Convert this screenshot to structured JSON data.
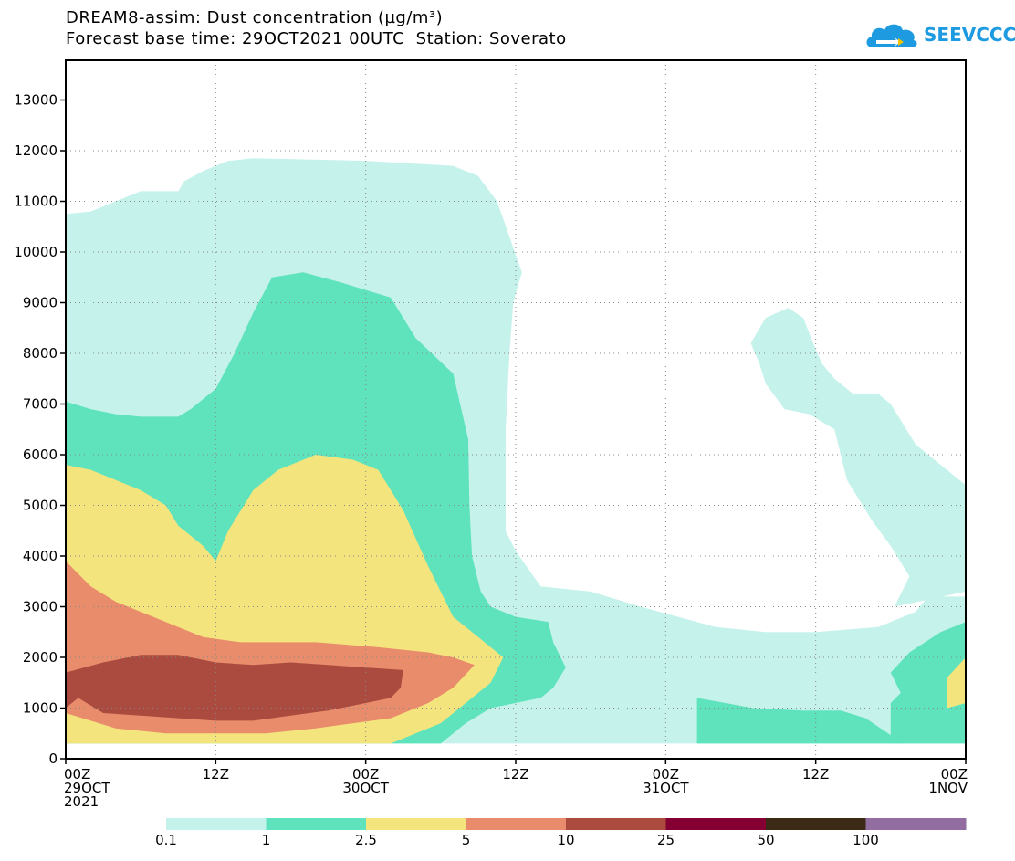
{
  "title_line1": "DREAM8-assim: Dust concentration (µg/m³)",
  "title_line2": "Forecast base time: 29OCT2021 00UTC  Station: Soverato",
  "logo": {
    "text": "SEEVCCC",
    "icon": "cloud-icon",
    "color": "#1e9be0"
  },
  "chart_data": {
    "type": "contour",
    "title": "DREAM8-assim: Dust concentration (µg/m³)",
    "subtitle": "Forecast base time: 29OCT2021 00UTC  Station: Soverato",
    "xlabel": "",
    "ylabel": "",
    "x_unit": "hours since 29OCT2021 00UTC",
    "xlim": [
      0,
      72
    ],
    "ylim": [
      0,
      14000
    ],
    "y_ticks": [
      0,
      1000,
      2000,
      3000,
      4000,
      5000,
      6000,
      7000,
      8000,
      9000,
      10000,
      11000,
      12000,
      13000
    ],
    "x_ticks": [
      {
        "t": 0,
        "label": [
          "00Z",
          "29OCT",
          "2021"
        ]
      },
      {
        "t": 12,
        "label": [
          "12Z"
        ]
      },
      {
        "t": 24,
        "label": [
          "00Z",
          "30OCT"
        ]
      },
      {
        "t": 36,
        "label": [
          "12Z"
        ]
      },
      {
        "t": 48,
        "label": [
          "00Z",
          "31OCT"
        ]
      },
      {
        "t": 60,
        "label": [
          "12Z"
        ]
      },
      {
        "t": 72,
        "label": [
          "00Z",
          "1NOV"
        ]
      }
    ],
    "grid": true,
    "colorbar": {
      "levels": [
        "0.1",
        "1",
        "2.5",
        "5",
        "10",
        "25",
        "50",
        "100"
      ],
      "colors": [
        "#c6f2ec",
        "#5ee3bd",
        "#f4e47e",
        "#e98c6b",
        "#ab4b40",
        "#840033",
        "#3b2a15",
        "#926da1"
      ]
    },
    "regions": [
      {
        "level": 0,
        "color": "#c6f2ec",
        "points": [
          [
            0,
            300
          ],
          [
            0,
            10750
          ],
          [
            2,
            10800
          ],
          [
            4,
            11000
          ],
          [
            6,
            11200
          ],
          [
            9,
            11200
          ],
          [
            9.5,
            11400
          ],
          [
            11,
            11600
          ],
          [
            13,
            11800
          ],
          [
            15,
            11850
          ],
          [
            24,
            11800
          ],
          [
            31,
            11700
          ],
          [
            33,
            11500
          ],
          [
            34.5,
            11000
          ],
          [
            35.5,
            10300
          ],
          [
            36.5,
            9600
          ],
          [
            35.8,
            9000
          ],
          [
            35.5,
            8000
          ],
          [
            35.2,
            6500
          ],
          [
            35.2,
            4500
          ],
          [
            36,
            4100
          ],
          [
            38,
            3400
          ],
          [
            42,
            3300
          ],
          [
            46,
            3000
          ],
          [
            49,
            2800
          ],
          [
            52,
            2600
          ],
          [
            56,
            2500
          ],
          [
            60,
            2500
          ],
          [
            65,
            2600
          ],
          [
            68,
            2900
          ],
          [
            69,
            3200
          ],
          [
            72,
            3200
          ],
          [
            72,
            300
          ]
        ]
      },
      {
        "level": 0,
        "color": "#c6f2ec",
        "points": [
          [
            54.8,
            8200
          ],
          [
            56,
            8700
          ],
          [
            57.8,
            8900
          ],
          [
            59,
            8700
          ],
          [
            59.8,
            8200
          ],
          [
            60.5,
            7800
          ],
          [
            61.5,
            7500
          ],
          [
            63,
            7200
          ],
          [
            65,
            7200
          ],
          [
            66,
            7000
          ],
          [
            68,
            6200
          ],
          [
            70,
            5800
          ],
          [
            72,
            5400
          ],
          [
            72,
            3300
          ],
          [
            66.3,
            3000
          ],
          [
            67.5,
            3600
          ],
          [
            66,
            4200
          ],
          [
            64.5,
            4700
          ],
          [
            62.5,
            5500
          ],
          [
            61.5,
            6500
          ],
          [
            59.5,
            6800
          ],
          [
            57.5,
            6900
          ],
          [
            56,
            7400
          ],
          [
            55.5,
            7800
          ]
        ]
      },
      {
        "level": 1,
        "color": "#5ee3bd",
        "points": [
          [
            0,
            300
          ],
          [
            0,
            7050
          ],
          [
            2,
            6900
          ],
          [
            4,
            6800
          ],
          [
            6,
            6750
          ],
          [
            9,
            6750
          ],
          [
            10,
            6900
          ],
          [
            12,
            7300
          ],
          [
            13.5,
            8000
          ],
          [
            15,
            8800
          ],
          [
            16.5,
            9500
          ],
          [
            19,
            9600
          ],
          [
            22,
            9400
          ],
          [
            26,
            9100
          ],
          [
            28,
            8300
          ],
          [
            31,
            7600
          ],
          [
            32.2,
            6300
          ],
          [
            32.3,
            5000
          ],
          [
            32.5,
            4000
          ],
          [
            33.2,
            3300
          ],
          [
            34,
            3000
          ],
          [
            36,
            2800
          ],
          [
            38.6,
            2700
          ],
          [
            39,
            2300
          ],
          [
            40,
            1800
          ],
          [
            39,
            1400
          ],
          [
            38,
            1200
          ],
          [
            34,
            1000
          ],
          [
            32,
            700
          ],
          [
            30,
            300
          ]
        ]
      },
      {
        "level": 1,
        "color": "#5ee3bd",
        "points": [
          [
            50.5,
            300
          ],
          [
            50.5,
            1200
          ],
          [
            55,
            1000
          ],
          [
            59,
            950
          ],
          [
            62,
            950
          ],
          [
            64,
            800
          ],
          [
            67,
            300
          ]
        ]
      },
      {
        "level": 1,
        "color": "#5ee3bd",
        "points": [
          [
            66,
            300
          ],
          [
            66,
            1100
          ],
          [
            66.8,
            1300
          ],
          [
            66,
            1700
          ],
          [
            67.5,
            2100
          ],
          [
            70,
            2500
          ],
          [
            72,
            2700
          ],
          [
            72,
            300
          ]
        ]
      },
      {
        "level": 2,
        "color": "#f4e47e",
        "points": [
          [
            0,
            300
          ],
          [
            0,
            5800
          ],
          [
            2,
            5700
          ],
          [
            4,
            5500
          ],
          [
            6,
            5300
          ],
          [
            8,
            5000
          ],
          [
            9,
            4600
          ],
          [
            11,
            4200
          ],
          [
            12,
            3900
          ],
          [
            13,
            4500
          ],
          [
            15,
            5300
          ],
          [
            17,
            5700
          ],
          [
            19,
            5900
          ],
          [
            20,
            6000
          ],
          [
            23,
            5900
          ],
          [
            25,
            5700
          ],
          [
            27,
            4900
          ],
          [
            29,
            3800
          ],
          [
            31,
            2800
          ],
          [
            33,
            2400
          ],
          [
            35,
            2000
          ],
          [
            34,
            1500
          ],
          [
            32,
            1100
          ],
          [
            30,
            700
          ],
          [
            28,
            500
          ],
          [
            26,
            300
          ]
        ]
      },
      {
        "level": 2,
        "color": "#f4e47e",
        "points": [
          [
            70.5,
            1000
          ],
          [
            72,
            1100
          ],
          [
            72,
            2000
          ],
          [
            70.5,
            1600
          ]
        ]
      },
      {
        "level": 3,
        "color": "#e98c6b",
        "points": [
          [
            0,
            300
          ],
          [
            0,
            3900
          ],
          [
            2,
            3400
          ],
          [
            4,
            3100
          ],
          [
            7,
            2800
          ],
          [
            9,
            2600
          ],
          [
            11,
            2400
          ],
          [
            14,
            2300
          ],
          [
            20,
            2300
          ],
          [
            25,
            2200
          ],
          [
            29,
            2100
          ],
          [
            31,
            2000
          ],
          [
            32.7,
            1850
          ],
          [
            31,
            1400
          ],
          [
            29,
            1100
          ],
          [
            26,
            800
          ],
          [
            23,
            700
          ],
          [
            20,
            600
          ],
          [
            16,
            500
          ],
          [
            8,
            500
          ],
          [
            4,
            600
          ],
          [
            0,
            900
          ]
        ]
      },
      {
        "level": 4,
        "color": "#ab4b40",
        "points": [
          [
            0,
            1000
          ],
          [
            0,
            1700
          ],
          [
            3,
            1900
          ],
          [
            6,
            2050
          ],
          [
            9,
            2050
          ],
          [
            12,
            1900
          ],
          [
            15,
            1850
          ],
          [
            18,
            1900
          ],
          [
            21,
            1850
          ],
          [
            24,
            1800
          ],
          [
            27,
            1750
          ],
          [
            26.8,
            1400
          ],
          [
            26,
            1200
          ],
          [
            24,
            1100
          ],
          [
            21,
            950
          ],
          [
            18,
            850
          ],
          [
            15,
            750
          ],
          [
            12,
            750
          ],
          [
            9,
            800
          ],
          [
            6,
            850
          ],
          [
            3,
            900
          ],
          [
            1,
            1200
          ]
        ]
      }
    ]
  }
}
